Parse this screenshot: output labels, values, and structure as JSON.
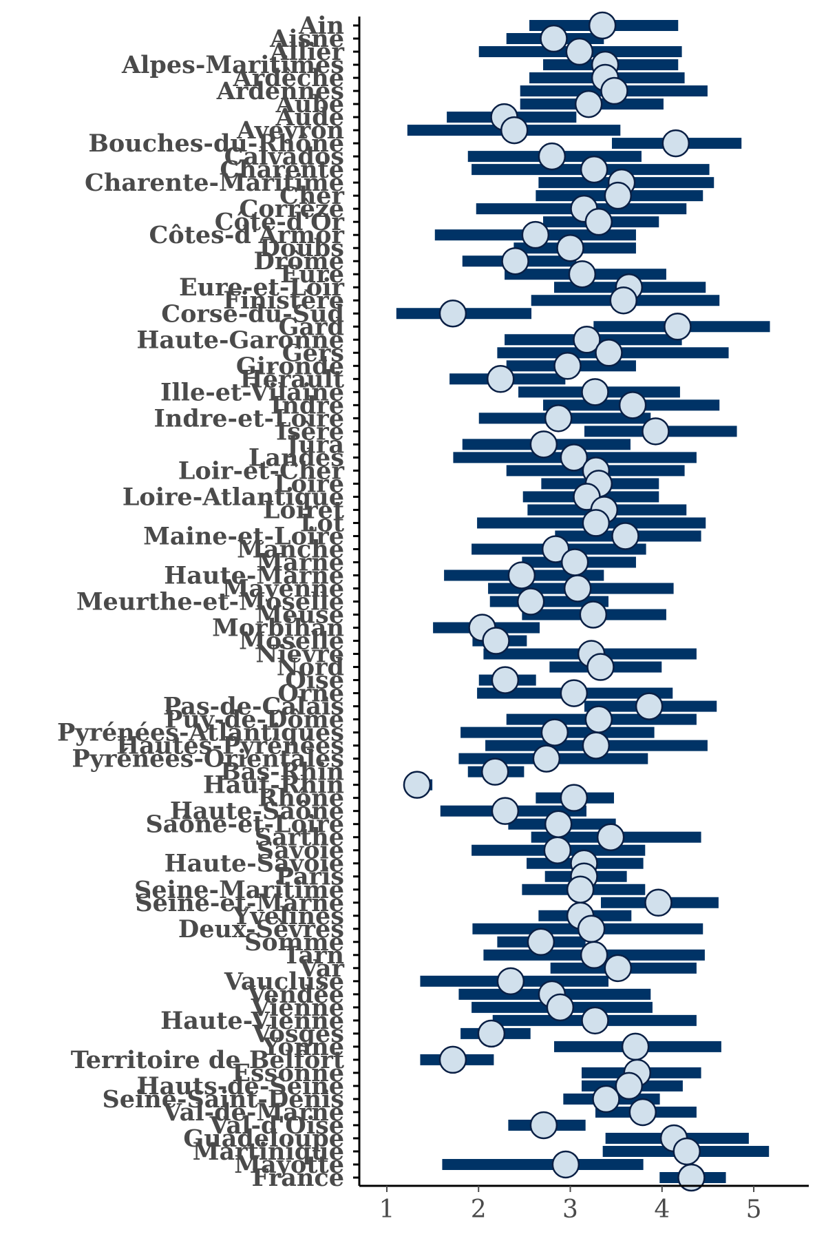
{
  "chart_data": {
    "type": "scatter",
    "title": "",
    "xlabel": "",
    "ylabel": "",
    "xlim": [
      0.7,
      5.6
    ],
    "xticks": [
      1,
      2,
      3,
      4,
      5
    ],
    "grid": false,
    "colors": {
      "bar": "#003366",
      "point_fill": "#d1e0ec",
      "point_stroke": "#0a1f44",
      "label": "#4a4a4a"
    },
    "categories": [
      "Ain",
      "Aisne",
      "Allier",
      "Alpes-Maritimes",
      "Ardèche",
      "Ardennes",
      "Aube",
      "Aude",
      "Aveyron",
      "Bouches-du-Rhône",
      "Calvados",
      "Charente",
      "Charente-Maritime",
      "Cher",
      "Corrèze",
      "Côte-d'Or",
      "Côtes-d'Armor",
      "Doubs",
      "Drôme",
      "Eure",
      "Eure-et-Loir",
      "Finistère",
      "Corse-du-Sud",
      "Gard",
      "Haute-Garonne",
      "Gers",
      "Gironde",
      "Hérault",
      "Ille-et-Vilaine",
      "Indre",
      "Indre-et-Loire",
      "Isère",
      "Jura",
      "Landes",
      "Loir-et-Cher",
      "Loire",
      "Loire-Atlantique",
      "Loiret",
      "Lot",
      "Maine-et-Loire",
      "Manche",
      "Marne",
      "Haute-Marne",
      "Mayenne",
      "Meurthe-et-Moselle",
      "Meuse",
      "Morbihan",
      "Moselle",
      "Nièvre",
      "Nord",
      "Oise",
      "Orne",
      "Pas-de-Calais",
      "Puy-de-Dôme",
      "Pyrénées-Atlantiques",
      "Hautes-Pyrénées",
      "Pyrénées-Orientales",
      "Bas-Rhin",
      "Haut-Rhin",
      "Rhône",
      "Haute-Saône",
      "Saône-et-Loire",
      "Sarthe",
      "Savoie",
      "Haute-Savoie",
      "Paris",
      "Seine-Maritime",
      "Seine-et-Marne",
      "Yvelines",
      "Deux-Sèvres",
      "Somme",
      "Tarn",
      "Var",
      "Vaucluse",
      "Vendée",
      "Vienne",
      "Haute-Vienne",
      "Vosges",
      "Yonne",
      "Territoire de Belfort",
      "Essonne",
      "Hauts-de-Seine",
      "Seine-Saint-Denis",
      "Val-de-Marne",
      "Val-d'Oise",
      "Guadeloupe",
      "Martinique",
      "Mayotte",
      "France"
    ],
    "estimates": [
      3.35,
      2.82,
      3.1,
      3.38,
      3.38,
      3.48,
      3.2,
      2.28,
      2.39,
      4.15,
      2.8,
      3.26,
      3.56,
      3.52,
      3.15,
      3.31,
      2.62,
      3.0,
      2.4,
      3.13,
      3.64,
      3.58,
      1.72,
      4.17,
      3.18,
      3.42,
      2.97,
      2.24,
      3.27,
      3.68,
      2.87,
      3.93,
      2.71,
      3.04,
      3.28,
      3.31,
      3.18,
      3.37,
      3.28,
      3.6,
      2.84,
      3.05,
      2.47,
      3.08,
      2.57,
      3.25,
      2.04,
      2.19,
      3.23,
      3.33,
      2.29,
      3.04,
      3.86,
      3.31,
      2.83,
      3.28,
      2.74,
      2.18,
      1.33,
      3.04,
      2.29,
      2.87,
      3.44,
      2.86,
      3.15,
      3.15,
      3.11,
      3.96,
      3.11,
      3.23,
      2.68,
      3.26,
      3.52,
      2.35,
      2.8,
      2.89,
      3.27,
      2.14,
      3.71,
      1.72,
      3.73,
      3.64,
      3.39,
      3.79,
      2.71,
      4.13,
      4.27,
      2.95,
      4.32
    ],
    "lower": [
      2.55,
      2.3,
      2.0,
      2.7,
      2.55,
      2.45,
      2.45,
      1.65,
      1.22,
      3.45,
      1.88,
      1.92,
      2.65,
      2.62,
      1.97,
      2.7,
      1.52,
      2.38,
      1.82,
      2.28,
      2.82,
      2.57,
      1.1,
      3.25,
      2.28,
      2.2,
      2.3,
      1.68,
      2.43,
      2.7,
      2.0,
      3.15,
      1.82,
      1.72,
      2.3,
      2.68,
      2.48,
      2.53,
      1.98,
      2.83,
      1.92,
      2.47,
      1.62,
      2.1,
      2.12,
      2.47,
      1.5,
      1.93,
      2.05,
      2.77,
      2.0,
      1.98,
      3.15,
      2.3,
      1.8,
      2.07,
      1.78,
      1.88,
      1.25,
      2.62,
      1.58,
      2.32,
      2.57,
      1.92,
      2.52,
      2.72,
      2.47,
      3.33,
      2.65,
      1.93,
      2.2,
      2.05,
      2.78,
      1.36,
      1.78,
      1.92,
      2.15,
      1.8,
      2.82,
      1.36,
      3.12,
      3.12,
      2.92,
      3.27,
      2.32,
      3.38,
      3.35,
      1.6,
      3.97
    ],
    "upper": [
      4.18,
      3.37,
      4.22,
      4.18,
      4.25,
      4.5,
      4.02,
      3.07,
      3.55,
      4.87,
      3.78,
      4.52,
      4.57,
      4.45,
      4.27,
      3.97,
      3.72,
      3.72,
      3.07,
      4.05,
      4.48,
      4.63,
      2.58,
      5.18,
      4.22,
      4.73,
      3.72,
      2.95,
      4.2,
      4.63,
      3.88,
      4.82,
      3.66,
      4.38,
      4.25,
      3.97,
      3.97,
      4.27,
      4.48,
      4.43,
      3.83,
      3.72,
      3.37,
      4.13,
      3.42,
      4.05,
      2.67,
      2.53,
      4.38,
      4.0,
      2.63,
      4.12,
      4.6,
      4.38,
      3.92,
      4.5,
      3.85,
      2.5,
      1.5,
      3.48,
      3.18,
      3.5,
      4.43,
      3.82,
      3.8,
      3.62,
      3.82,
      4.62,
      3.67,
      4.45,
      3.17,
      4.47,
      4.38,
      3.42,
      3.88,
      3.9,
      4.38,
      2.57,
      4.65,
      2.17,
      4.43,
      4.23,
      3.98,
      4.38,
      3.17,
      4.95,
      5.17,
      3.8,
      4.7
    ]
  }
}
